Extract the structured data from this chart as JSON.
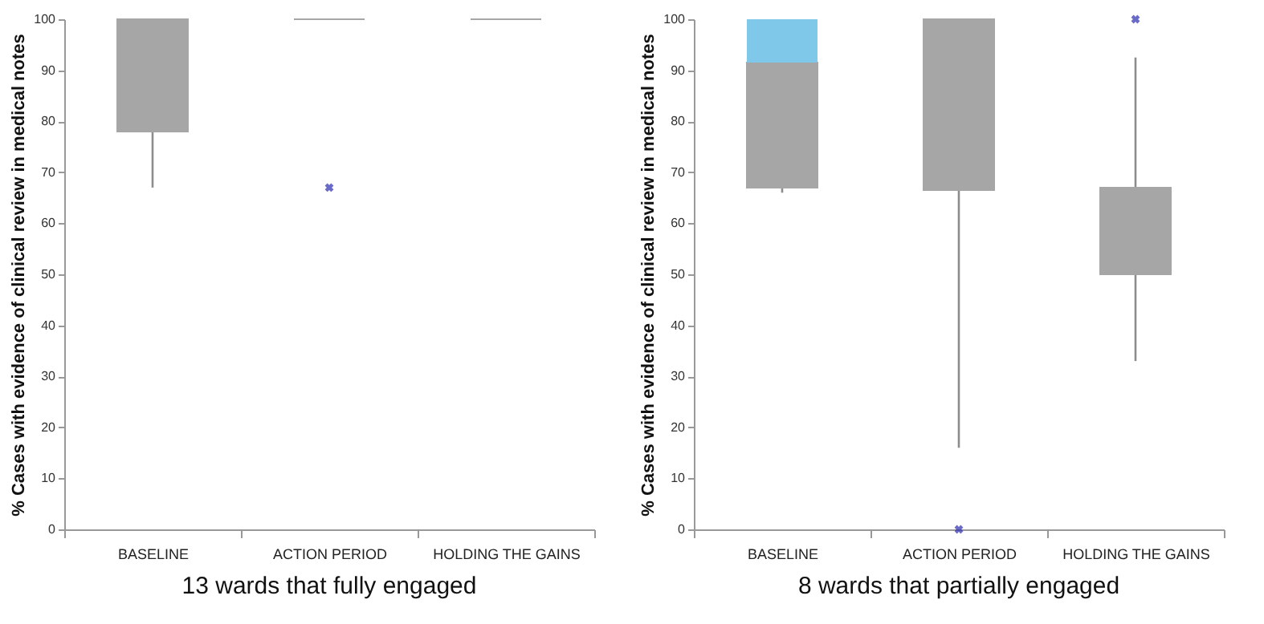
{
  "chart_data": [
    {
      "type": "box",
      "title": "13 wards that fully engaged",
      "ylabel": "% Cases with evidence of clinical review in medical notes",
      "categories": [
        "BASELINE",
        "ACTION PERIOD",
        "HOLDING THE GAINS"
      ],
      "series": [
        {
          "type": "box",
          "color": "#a6a6a6",
          "boxes": [
            {
              "low": 67,
              "q1": 78,
              "median": 100,
              "q3": 100,
              "high": 100
            },
            {
              "low": 100,
              "q1": 100,
              "median": 100,
              "q3": 100,
              "high": 100
            },
            {
              "low": 100,
              "q1": 100,
              "median": 100,
              "q3": 100,
              "high": 100
            }
          ]
        },
        {
          "type": "scatter",
          "color": "#2b2bb0",
          "x": [
            "ACTION PERIOD"
          ],
          "values": [
            67
          ]
        }
      ],
      "ylim": [
        0,
        100
      ],
      "yticks": [
        0,
        10,
        20,
        30,
        40,
        50,
        60,
        70,
        80,
        90,
        100
      ],
      "grid": false,
      "marker": "cross"
    },
    {
      "type": "box",
      "title": "8 wards that partially engaged",
      "ylabel": "% Cases with evidence of  clinical review in medical notes",
      "categories": [
        "BASELINE",
        "ACTION PERIOD",
        "HOLDING THE GAINS"
      ],
      "series": [
        {
          "type": "box",
          "color": "#a6a6a6",
          "boxes": [
            {
              "low": 66,
              "q1": 67,
              "median": 91.5,
              "q3": 100,
              "high": 100
            },
            {
              "low": 16,
              "q1": 66.5,
              "median": 100,
              "q3": 100,
              "high": 100
            },
            {
              "low": 33,
              "q1": 50,
              "median": 67,
              "q3": 67,
              "high": 92.5
            }
          ]
        },
        {
          "type": "scatter",
          "color": "#2b2bb0",
          "x": [
            "ACTION PERIOD",
            "HOLDING THE GAINS"
          ],
          "values": [
            0,
            100
          ]
        }
      ],
      "colors": [
        "#7fc8ea",
        "#a6a6a6",
        "#a6a6a6"
      ],
      "ylim": [
        0,
        100
      ],
      "yticks": [
        0,
        10,
        20,
        30,
        40,
        50,
        60,
        70,
        80,
        90,
        100
      ],
      "grid": false,
      "marker": "cross"
    }
  ]
}
